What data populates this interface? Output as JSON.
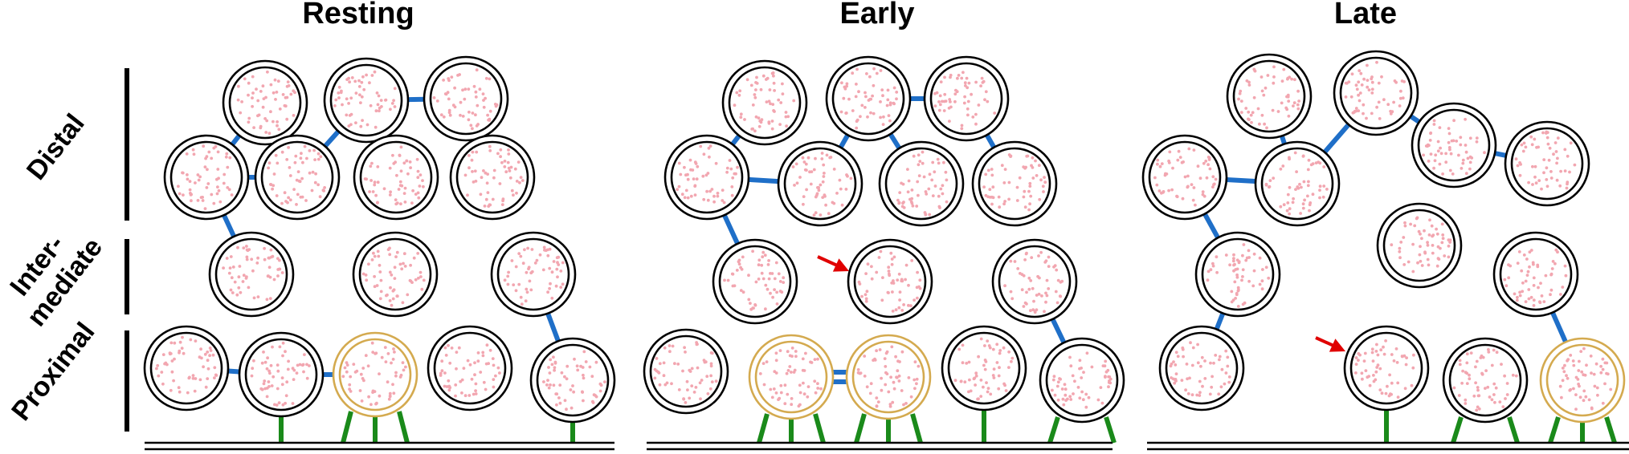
{
  "panels": [
    {
      "title": "Resting"
    },
    {
      "title": "Early"
    },
    {
      "title": "Late"
    }
  ],
  "zones": {
    "distal": "Distal",
    "intermediate_line1": "Inter-",
    "intermediate_line2": "mediate",
    "proximal": "Proximal"
  },
  "colors": {
    "vesicle_outline": "#000000",
    "primed_outline": "#d4aa4f",
    "cargo_dot": "#f2a6b0",
    "synapsin_link": "#1f6fc8",
    "tether": "#1a8a1a",
    "arrow": "#e00000",
    "membrane": "#000000"
  },
  "icons": {
    "vesicle": "synaptic-vesicle-icon",
    "new_vesicle_marker": "red-arrow-icon"
  }
}
